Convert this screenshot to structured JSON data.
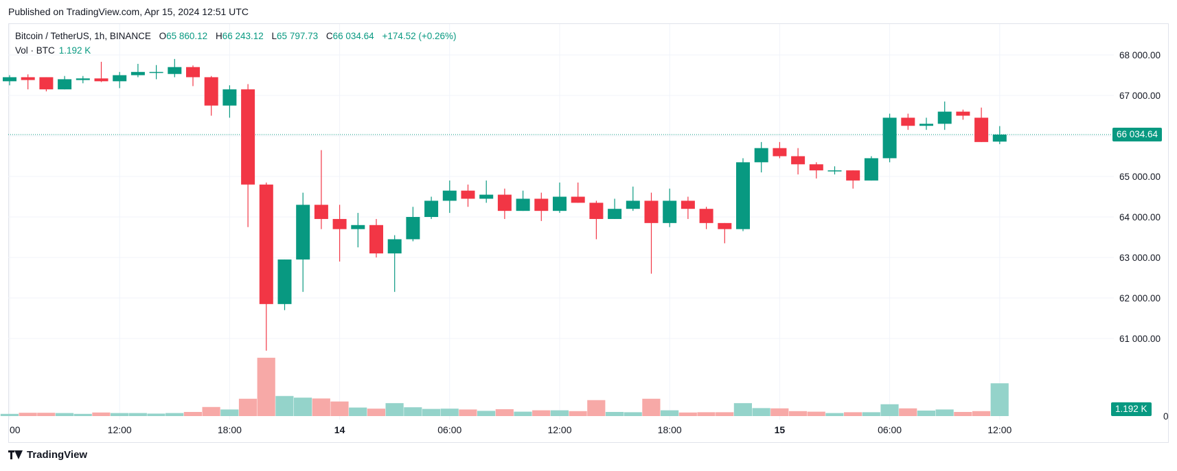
{
  "published": "Published on TradingView.com, Apr 15, 2024 12:51 UTC",
  "legend": {
    "symbol": "Bitcoin / TetherUS, 1h, BINANCE",
    "o_label": "O",
    "o_value": "65 860.12",
    "h_label": "H",
    "h_value": "66 243.12",
    "l_label": "L",
    "l_value": "65 797.73",
    "c_label": "C",
    "c_value": "66 034.64",
    "change": "+174.52 (+0.26%)"
  },
  "volume_legend": {
    "label": "Vol · BTC",
    "value": "1.192 K"
  },
  "price_tag": "66 034.64",
  "volume_tag": "1.192 K",
  "logo_text": "TradingView",
  "colors": {
    "up": "#089981",
    "down": "#f23645",
    "up_vol": "#94d3ca",
    "down_vol": "#f7a9a7",
    "grid": "#f0f3fa",
    "text": "#131722"
  },
  "chart_data": {
    "type": "candlestick",
    "interval": "1h",
    "y_axis": {
      "ticks": [
        61000,
        62000,
        63000,
        64000,
        65000,
        66000,
        67000,
        68000
      ],
      "tick_labels": [
        "61 000.00",
        "62 000.00",
        "63 000.00",
        "64 000.00",
        "65 000.00",
        "66 000.00",
        "67 000.00",
        "68 000.00"
      ],
      "ylim": [
        60750,
        68450
      ]
    },
    "x_axis": {
      "tick_labels": [
        {
          "index": 0,
          "label": "00",
          "bold": false
        },
        {
          "index": 6,
          "label": "12:00",
          "bold": false
        },
        {
          "index": 12,
          "label": "18:00",
          "bold": false
        },
        {
          "index": 18,
          "label": "14",
          "bold": true
        },
        {
          "index": 24,
          "label": "06:00",
          "bold": false
        },
        {
          "index": 30,
          "label": "12:00",
          "bold": false
        },
        {
          "index": 36,
          "label": "18:00",
          "bold": false
        },
        {
          "index": 42,
          "label": "15",
          "bold": true
        },
        {
          "index": 48,
          "label": "06:00",
          "bold": false
        },
        {
          "index": 54,
          "label": "12:00",
          "bold": false
        }
      ]
    },
    "candles": [
      {
        "o": 67350,
        "h": 67500,
        "l": 67250,
        "c": 67450,
        "v": 0.08
      },
      {
        "o": 67450,
        "h": 67520,
        "l": 67150,
        "c": 67380,
        "v": 0.12
      },
      {
        "o": 67450,
        "h": 67450,
        "l": 67100,
        "c": 67150,
        "v": 0.12
      },
      {
        "o": 67150,
        "h": 67480,
        "l": 67150,
        "c": 67400,
        "v": 0.11
      },
      {
        "o": 67380,
        "h": 67480,
        "l": 67300,
        "c": 67420,
        "v": 0.08
      },
      {
        "o": 67420,
        "h": 67830,
        "l": 67330,
        "c": 67350,
        "v": 0.13
      },
      {
        "o": 67350,
        "h": 67580,
        "l": 67180,
        "c": 67500,
        "v": 0.11
      },
      {
        "o": 67500,
        "h": 67780,
        "l": 67450,
        "c": 67580,
        "v": 0.11
      },
      {
        "o": 67560,
        "h": 67750,
        "l": 67400,
        "c": 67580,
        "v": 0.09
      },
      {
        "o": 67530,
        "h": 67900,
        "l": 67450,
        "c": 67700,
        "v": 0.11
      },
      {
        "o": 67700,
        "h": 67740,
        "l": 67230,
        "c": 67450,
        "v": 0.15
      },
      {
        "o": 67450,
        "h": 67480,
        "l": 66500,
        "c": 66750,
        "v": 0.33
      },
      {
        "o": 66750,
        "h": 67250,
        "l": 66450,
        "c": 67150,
        "v": 0.24
      },
      {
        "o": 67150,
        "h": 67280,
        "l": 63750,
        "c": 64800,
        "v": 0.63
      },
      {
        "o": 64800,
        "h": 64850,
        "l": 60700,
        "c": 61850,
        "v": 2.12
      },
      {
        "o": 61850,
        "h": 62950,
        "l": 61700,
        "c": 62950,
        "v": 0.73
      },
      {
        "o": 62950,
        "h": 64600,
        "l": 62150,
        "c": 64300,
        "v": 0.67
      },
      {
        "o": 64300,
        "h": 65650,
        "l": 63700,
        "c": 63950,
        "v": 0.64
      },
      {
        "o": 63950,
        "h": 64300,
        "l": 62900,
        "c": 63700,
        "v": 0.53
      },
      {
        "o": 63700,
        "h": 64100,
        "l": 63250,
        "c": 63800,
        "v": 0.31
      },
      {
        "o": 63800,
        "h": 63950,
        "l": 63000,
        "c": 63100,
        "v": 0.27
      },
      {
        "o": 63100,
        "h": 63550,
        "l": 62150,
        "c": 63450,
        "v": 0.47
      },
      {
        "o": 63450,
        "h": 64250,
        "l": 63400,
        "c": 64000,
        "v": 0.32
      },
      {
        "o": 64000,
        "h": 64500,
        "l": 63950,
        "c": 64400,
        "v": 0.26
      },
      {
        "o": 64400,
        "h": 64900,
        "l": 64100,
        "c": 64650,
        "v": 0.27
      },
      {
        "o": 64650,
        "h": 64800,
        "l": 64250,
        "c": 64450,
        "v": 0.24
      },
      {
        "o": 64450,
        "h": 64900,
        "l": 64350,
        "c": 64550,
        "v": 0.19
      },
      {
        "o": 64550,
        "h": 64700,
        "l": 63950,
        "c": 64150,
        "v": 0.25
      },
      {
        "o": 64150,
        "h": 64650,
        "l": 64150,
        "c": 64450,
        "v": 0.16
      },
      {
        "o": 64450,
        "h": 64600,
        "l": 63900,
        "c": 64150,
        "v": 0.21
      },
      {
        "o": 64150,
        "h": 64850,
        "l": 64100,
        "c": 64500,
        "v": 0.21
      },
      {
        "o": 64500,
        "h": 64850,
        "l": 64350,
        "c": 64350,
        "v": 0.18
      },
      {
        "o": 64350,
        "h": 64400,
        "l": 63450,
        "c": 63950,
        "v": 0.58
      },
      {
        "o": 63950,
        "h": 64450,
        "l": 63950,
        "c": 64200,
        "v": 0.15
      },
      {
        "o": 64200,
        "h": 64750,
        "l": 64150,
        "c": 64400,
        "v": 0.14
      },
      {
        "o": 64400,
        "h": 64600,
        "l": 62600,
        "c": 63850,
        "v": 0.63
      },
      {
        "o": 63850,
        "h": 64700,
        "l": 63750,
        "c": 64400,
        "v": 0.21
      },
      {
        "o": 64400,
        "h": 64500,
        "l": 63950,
        "c": 64200,
        "v": 0.13
      },
      {
        "o": 64200,
        "h": 64250,
        "l": 63700,
        "c": 63850,
        "v": 0.14
      },
      {
        "o": 63850,
        "h": 63850,
        "l": 63350,
        "c": 63700,
        "v": 0.14
      },
      {
        "o": 63700,
        "h": 65450,
        "l": 63650,
        "c": 65350,
        "v": 0.47
      },
      {
        "o": 65350,
        "h": 65850,
        "l": 65100,
        "c": 65700,
        "v": 0.29
      },
      {
        "o": 65700,
        "h": 65850,
        "l": 65450,
        "c": 65500,
        "v": 0.28
      },
      {
        "o": 65500,
        "h": 65700,
        "l": 65050,
        "c": 65300,
        "v": 0.18
      },
      {
        "o": 65300,
        "h": 65350,
        "l": 64950,
        "c": 65150,
        "v": 0.16
      },
      {
        "o": 65150,
        "h": 65250,
        "l": 65050,
        "c": 65150,
        "v": 0.11
      },
      {
        "o": 65150,
        "h": 65150,
        "l": 64700,
        "c": 64900,
        "v": 0.14
      },
      {
        "o": 64900,
        "h": 65500,
        "l": 64900,
        "c": 65450,
        "v": 0.14
      },
      {
        "o": 65450,
        "h": 66550,
        "l": 65350,
        "c": 66450,
        "v": 0.43
      },
      {
        "o": 66450,
        "h": 66550,
        "l": 66150,
        "c": 66250,
        "v": 0.28
      },
      {
        "o": 66250,
        "h": 66450,
        "l": 66150,
        "c": 66300,
        "v": 0.2
      },
      {
        "o": 66300,
        "h": 66850,
        "l": 66150,
        "c": 66600,
        "v": 0.24
      },
      {
        "o": 66600,
        "h": 66650,
        "l": 66400,
        "c": 66500,
        "v": 0.15
      },
      {
        "o": 66450,
        "h": 66700,
        "l": 65850,
        "c": 65850,
        "v": 0.18
      },
      {
        "o": 65860.12,
        "h": 66243.12,
        "l": 65797.73,
        "c": 66034.64,
        "v": 1.192
      }
    ]
  }
}
